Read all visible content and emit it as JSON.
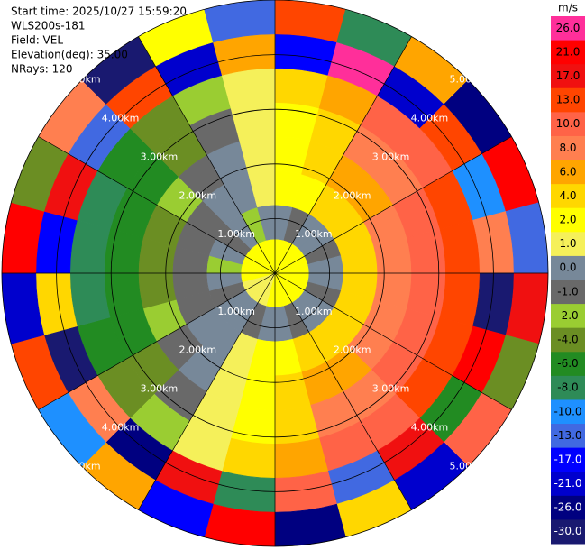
{
  "chart_data": {
    "type": "ppi",
    "annotations": [
      "Start time: 2025/10/27 15:59:20",
      "WLS200s-181",
      "Field: VEL",
      "Elevation(deg): 35.00",
      "NRays: 120"
    ],
    "colorbar_title": "m/s",
    "colorbar": [
      {
        "value": 26,
        "label": "26.0",
        "color": "#ff2f9a"
      },
      {
        "value": 21,
        "label": "21.0",
        "color": "#ff0000"
      },
      {
        "value": 17,
        "label": "17.0",
        "color": "#f01010"
      },
      {
        "value": 13,
        "label": "13.0",
        "color": "#ff4500"
      },
      {
        "value": 10,
        "label": "10.0",
        "color": "#ff6347"
      },
      {
        "value": 8,
        "label": "8.0",
        "color": "#ff7f50"
      },
      {
        "value": 6,
        "label": "6.0",
        "color": "#ffa500"
      },
      {
        "value": 4,
        "label": "4.0",
        "color": "#ffd700"
      },
      {
        "value": 2,
        "label": "2.0",
        "color": "#ffff00"
      },
      {
        "value": 1,
        "label": "1.0",
        "color": "#f5f05a"
      },
      {
        "value": 0,
        "label": "0.0",
        "color": "#778899"
      },
      {
        "value": -1,
        "label": "-1.0",
        "color": "#696969"
      },
      {
        "value": -2,
        "label": "-2.0",
        "color": "#9acd32"
      },
      {
        "value": -4,
        "label": "-4.0",
        "color": "#6b8e23"
      },
      {
        "value": -6,
        "label": "-6.0",
        "color": "#228b22"
      },
      {
        "value": -8,
        "label": "-8.0",
        "color": "#2e8b57"
      },
      {
        "value": -10,
        "label": "-10.0",
        "color": "#1e90ff"
      },
      {
        "value": -13,
        "label": "-13.0",
        "color": "#4169e1"
      },
      {
        "value": -17,
        "label": "-17.0",
        "color": "#0000ff"
      },
      {
        "value": -21,
        "label": "-21.0",
        "color": "#0000cd"
      },
      {
        "value": -26,
        "label": "-26.0",
        "color": "#000080"
      },
      {
        "value": -30,
        "label": "-30.0",
        "color": "#191970"
      }
    ],
    "rlim": [
      0,
      5
    ],
    "rticks": [
      {
        "value": 1,
        "label": "1.00km"
      },
      {
        "value": 2,
        "label": "2.00km"
      },
      {
        "value": 3,
        "label": "3.00km"
      },
      {
        "value": 4,
        "label": "4.00km"
      },
      {
        "value": 5,
        "label": "5.00km"
      }
    ],
    "values": [
      [
        2,
        0,
        2,
        3,
        3,
        4,
        -17,
        13
      ],
      [
        2,
        -1,
        3,
        5,
        5,
        7,
        26,
        -8
      ],
      [
        2,
        0,
        4,
        6,
        8,
        10,
        -21,
        6
      ],
      [
        2,
        0,
        4,
        7,
        9,
        12,
        15,
        -26
      ],
      [
        2,
        -1,
        5,
        8,
        11,
        14,
        -10,
        21
      ],
      [
        2,
        0,
        5,
        9,
        12,
        16,
        8,
        -13
      ],
      [
        2,
        0,
        5,
        9,
        12,
        16,
        -30,
        17
      ],
      [
        2,
        -1,
        5,
        9,
        12,
        16,
        24,
        -4
      ],
      [
        2,
        0,
        5,
        8,
        11,
        14,
        -6,
        10
      ],
      [
        2,
        0,
        4,
        7,
        9,
        12,
        19,
        -21
      ],
      [
        2,
        -1,
        4,
        6,
        8,
        10,
        -13,
        4
      ],
      [
        2,
        0,
        3,
        5,
        5,
        7,
        12,
        -26
      ],
      [
        2,
        0,
        2,
        3,
        3,
        4,
        -8,
        23
      ],
      [
        1,
        -1,
        1,
        1,
        1,
        1,
        17,
        -17
      ],
      [
        1,
        0,
        0,
        0,
        -1,
        -2,
        -24,
        6
      ],
      [
        1,
        0,
        0,
        -1,
        -3,
        -4,
        9,
        -10
      ],
      [
        1,
        -1,
        -1,
        -2,
        -5,
        -6,
        -28,
        14
      ],
      [
        2,
        0,
        -1,
        -3,
        -6,
        -8,
        5,
        -21
      ],
      [
        2,
        -2,
        -1,
        -3,
        -6,
        -8,
        -15,
        25
      ],
      [
        2,
        0,
        -1,
        -3,
        -6,
        -8,
        20,
        -4
      ],
      [
        2,
        -1,
        -1,
        -2,
        -5,
        -6,
        -11,
        8
      ],
      [
        2,
        0,
        0,
        -1,
        -3,
        -4,
        13,
        -28
      ],
      [
        2,
        -2,
        0,
        0,
        -1,
        -2,
        -19,
        2
      ],
      [
        2,
        0,
        1,
        1,
        1,
        1,
        7,
        -12
      ]
    ]
  }
}
